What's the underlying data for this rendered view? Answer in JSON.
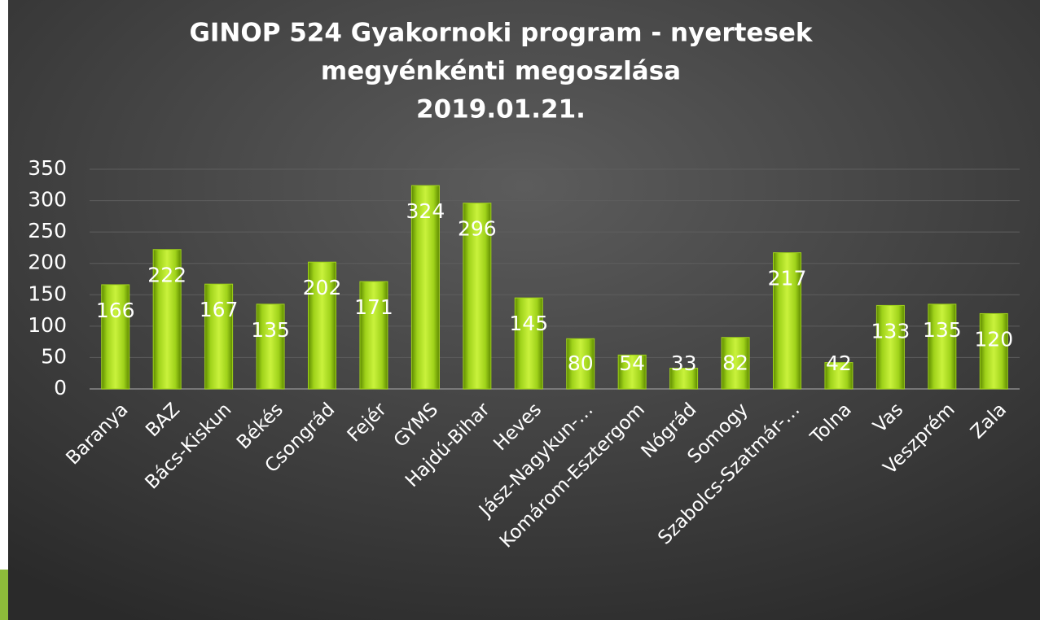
{
  "chart_data": {
    "type": "bar",
    "title": [
      "GINOP 524 Gyakornoki program - nyertesek",
      "megyénkénti megoszlása",
      "2019.01.21."
    ],
    "categories": [
      "Baranya",
      "BAZ",
      "Bács-Kiskun",
      "Békés",
      "Csongrád",
      "Fejér",
      "GYMS",
      "Hajdú-Bihar",
      "Heves",
      "Jász-Nagykun-…",
      "Komárom-Esztergom",
      "Nógrád",
      "Somogy",
      "Szabolcs-Szatmár-…",
      "Tolna",
      "Vas",
      "Veszprém",
      "Zala"
    ],
    "values": [
      166,
      222,
      167,
      135,
      202,
      171,
      324,
      296,
      145,
      80,
      54,
      33,
      82,
      217,
      42,
      133,
      135,
      120
    ],
    "color": "#9fd21a",
    "ylim": [
      0,
      350
    ],
    "yticks": [
      0,
      50,
      100,
      150,
      200,
      250,
      300,
      350
    ],
    "grid": true
  }
}
